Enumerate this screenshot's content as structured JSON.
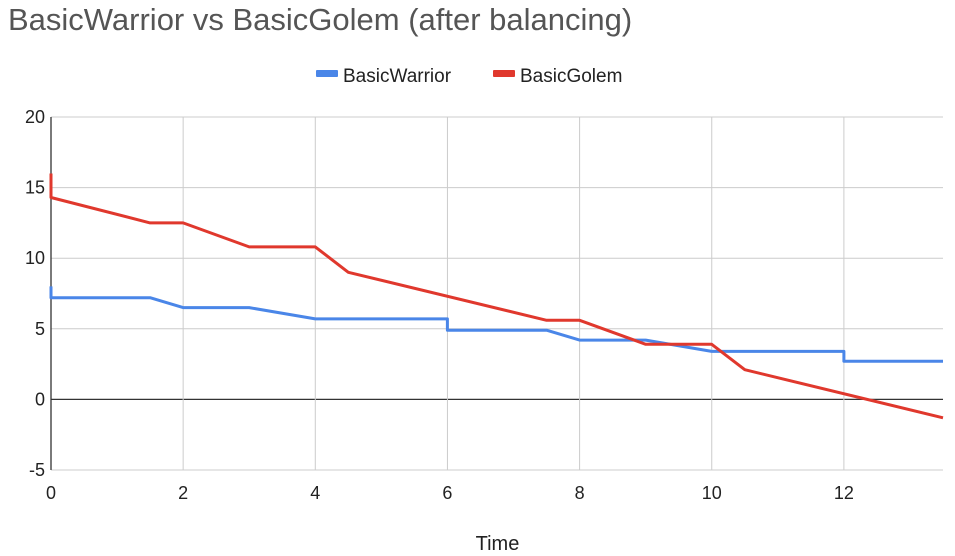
{
  "chart_data": {
    "type": "line",
    "title": "BasicWarrior vs BasicGolem (after balancing)",
    "xlabel": "Time",
    "ylabel": "",
    "xlim": [
      0,
      13.5
    ],
    "ylim": [
      -5,
      20
    ],
    "x_ticks": [
      0,
      2,
      4,
      6,
      8,
      10,
      12
    ],
    "y_ticks": [
      -5,
      0,
      5,
      10,
      15,
      20
    ],
    "grid": true,
    "legend_position": "top-center",
    "series": [
      {
        "name": "BasicWarrior",
        "color": "#4a86e8",
        "x": [
          0,
          0,
          1.5,
          2,
          3,
          4,
          6,
          6,
          7.5,
          8,
          9,
          10,
          12,
          12,
          13.5
        ],
        "y": [
          8,
          7.2,
          7.2,
          6.5,
          6.5,
          5.7,
          5.7,
          4.9,
          4.9,
          4.2,
          4.2,
          3.4,
          3.4,
          2.7,
          2.7
        ]
      },
      {
        "name": "BasicGolem",
        "color": "#e0382d",
        "x": [
          0,
          0,
          1.5,
          2,
          3,
          4,
          4.5,
          7.5,
          8,
          9,
          10,
          10.5,
          13.5
        ],
        "y": [
          16,
          14.3,
          12.5,
          12.5,
          10.8,
          10.8,
          9,
          5.6,
          5.6,
          3.9,
          3.9,
          2.1,
          -1.3
        ]
      }
    ]
  }
}
